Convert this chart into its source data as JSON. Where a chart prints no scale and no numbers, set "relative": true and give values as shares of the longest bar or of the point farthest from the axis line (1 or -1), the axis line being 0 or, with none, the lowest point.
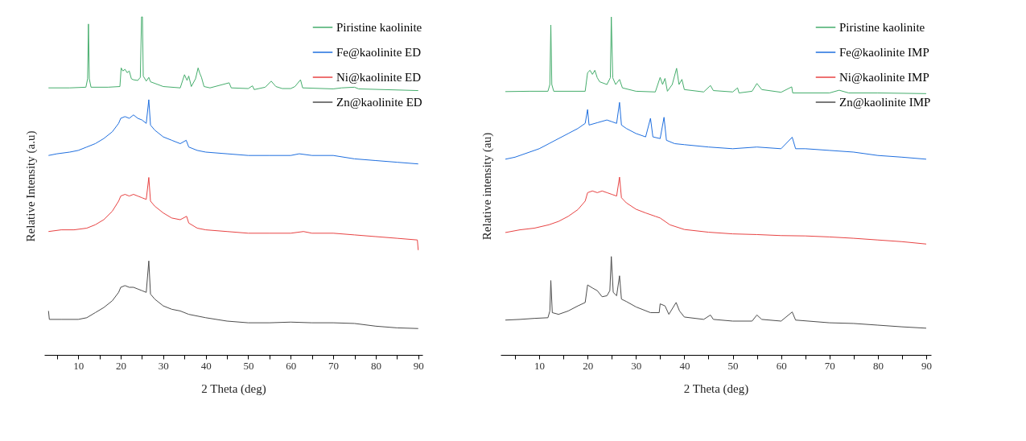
{
  "chart_data": [
    {
      "type": "line",
      "relative": true,
      "xlabel": "2 Theta (deg)",
      "ylabel": "Relative Intensity (a.u)",
      "legend": "top right",
      "xlim": [
        2,
        91
      ],
      "xticks": [
        {
          "value": 5,
          "label": null
        },
        10,
        {
          "value": 15,
          "label": null
        },
        20,
        {
          "value": 25,
          "label": null
        },
        30,
        {
          "value": 35,
          "label": null
        },
        40,
        {
          "value": 45,
          "label": null
        },
        50,
        {
          "value": 55,
          "label": null
        },
        60,
        {
          "value": 65,
          "label": null
        },
        70,
        {
          "value": 75,
          "label": null
        },
        80,
        {
          "value": 85,
          "label": null
        },
        90
      ],
      "series": [
        {
          "name": "Piristine kaolinite",
          "color": "#45ad6c",
          "x": [
            3,
            8,
            11.8,
            12.2,
            12.4,
            12.6,
            13,
            17,
            19.8,
            20.1,
            20.5,
            21,
            21.5,
            22,
            22.5,
            23,
            24,
            24.6,
            24.9,
            25.1,
            25.3,
            26,
            26.6,
            27,
            30,
            34,
            35,
            35.6,
            36,
            36.6,
            37.6,
            38.2,
            38.6,
            39,
            39.6,
            41,
            45.5,
            46,
            50,
            51,
            51.4,
            54,
            55.4,
            56.5,
            58,
            60,
            61,
            62.3,
            62.8,
            70,
            72,
            75,
            76,
            90
          ],
          "values": [
            0.79,
            0.79,
            0.792,
            0.817,
            0.979,
            0.817,
            0.792,
            0.792,
            0.794,
            0.849,
            0.84,
            0.845,
            0.835,
            0.84,
            0.817,
            0.814,
            0.812,
            0.821,
            1.0,
            1.0,
            0.825,
            0.81,
            0.821,
            0.808,
            0.794,
            0.79,
            0.829,
            0.812,
            0.825,
            0.794,
            0.817,
            0.849,
            0.833,
            0.821,
            0.794,
            0.79,
            0.805,
            0.79,
            0.788,
            0.796,
            0.785,
            0.792,
            0.81,
            0.794,
            0.788,
            0.788,
            0.794,
            0.814,
            0.79,
            0.787,
            0.79,
            0.792,
            0.787,
            0.782
          ]
        },
        {
          "name": "Fe@kaolinite ED",
          "color": "#1f6fdf",
          "x": [
            3,
            5,
            8,
            10,
            12,
            14,
            16,
            18,
            19.5,
            20,
            21,
            22,
            23,
            24,
            25,
            26,
            26.6,
            27,
            28,
            30,
            32,
            34,
            35.4,
            36,
            38,
            40,
            45,
            50,
            55,
            60,
            62,
            65,
            70,
            75,
            80,
            85,
            90
          ],
          "values": [
            0.59,
            0.595,
            0.6,
            0.605,
            0.615,
            0.625,
            0.64,
            0.66,
            0.685,
            0.7,
            0.705,
            0.7,
            0.71,
            0.7,
            0.695,
            0.685,
            0.755,
            0.68,
            0.665,
            0.645,
            0.635,
            0.625,
            0.635,
            0.615,
            0.605,
            0.6,
            0.595,
            0.59,
            0.59,
            0.59,
            0.595,
            0.59,
            0.59,
            0.58,
            0.575,
            0.57,
            0.565
          ]
        },
        {
          "name": "Ni@kaolinite ED",
          "color": "#e84343",
          "x": [
            3,
            6,
            9,
            12,
            14,
            16,
            18,
            19.5,
            20,
            21,
            22,
            23,
            24,
            25,
            26,
            26.6,
            27,
            28,
            30,
            32,
            34,
            35.5,
            36,
            38,
            40,
            45,
            50,
            55,
            60,
            63,
            65,
            70,
            75,
            80,
            85,
            89.8,
            90
          ],
          "values": [
            0.365,
            0.37,
            0.37,
            0.375,
            0.385,
            0.4,
            0.425,
            0.455,
            0.47,
            0.475,
            0.47,
            0.475,
            0.47,
            0.465,
            0.46,
            0.525,
            0.455,
            0.44,
            0.42,
            0.405,
            0.4,
            0.41,
            0.39,
            0.375,
            0.37,
            0.365,
            0.36,
            0.36,
            0.36,
            0.365,
            0.36,
            0.36,
            0.355,
            0.35,
            0.345,
            0.34,
            0.31
          ]
        },
        {
          "name": "Zn@kaolinite ED",
          "color": "#4d4d4d",
          "x": [
            3,
            3.2,
            6,
            10,
            12,
            14,
            16,
            18,
            19.5,
            20,
            21,
            22,
            23,
            24,
            25,
            26,
            26.6,
            27,
            28,
            30,
            32,
            34,
            36,
            40,
            45,
            50,
            55,
            60,
            65,
            70,
            75,
            80,
            85,
            90
          ],
          "values": [
            0.13,
            0.105,
            0.105,
            0.105,
            0.11,
            0.125,
            0.14,
            0.16,
            0.185,
            0.2,
            0.205,
            0.2,
            0.2,
            0.195,
            0.19,
            0.185,
            0.278,
            0.18,
            0.165,
            0.145,
            0.135,
            0.13,
            0.12,
            0.11,
            0.1,
            0.095,
            0.095,
            0.097,
            0.095,
            0.095,
            0.093,
            0.085,
            0.08,
            0.078
          ]
        }
      ]
    },
    {
      "type": "line",
      "relative": true,
      "xlabel": "2 Theta (deg)",
      "ylabel": "Relative intensity (au)",
      "legend": "top right",
      "xlim": [
        2,
        91
      ],
      "xticks": [
        {
          "value": 5,
          "label": null
        },
        10,
        {
          "value": 15,
          "label": null
        },
        20,
        {
          "value": 25,
          "label": null
        },
        30,
        {
          "value": 35,
          "label": null
        },
        40,
        {
          "value": 45,
          "label": null
        },
        50,
        {
          "value": 55,
          "label": null
        },
        60,
        {
          "value": 65,
          "label": null
        },
        70,
        {
          "value": 75,
          "label": null
        },
        80,
        {
          "value": 85,
          "label": null
        },
        90
      ],
      "series": [
        {
          "name": "Piristine kaolinite",
          "color": "#45ad6c",
          "x": [
            3,
            8,
            11.8,
            12.2,
            12.4,
            12.6,
            13,
            19.5,
            20,
            20.5,
            21,
            21.5,
            22,
            22.5,
            24,
            24.7,
            24.9,
            25.2,
            25.8,
            26.6,
            27.2,
            30,
            34,
            35,
            35.5,
            36,
            36.5,
            37.5,
            38.4,
            38.9,
            39.5,
            40,
            44,
            45.4,
            46,
            50,
            51,
            51.3,
            54,
            55,
            56,
            60,
            62.2,
            62.4,
            70,
            72,
            74,
            80,
            90
          ],
          "values": [
            0.779,
            0.78,
            0.78,
            0.8,
            0.976,
            0.8,
            0.78,
            0.78,
            0.835,
            0.842,
            0.83,
            0.842,
            0.82,
            0.808,
            0.8,
            0.82,
            1.0,
            0.82,
            0.8,
            0.815,
            0.79,
            0.78,
            0.778,
            0.821,
            0.8,
            0.818,
            0.78,
            0.8,
            0.848,
            0.8,
            0.815,
            0.785,
            0.778,
            0.797,
            0.782,
            0.778,
            0.79,
            0.775,
            0.78,
            0.803,
            0.785,
            0.777,
            0.793,
            0.775,
            0.775,
            0.783,
            0.775,
            0.775,
            0.773
          ]
        },
        {
          "name": "Fe@kaolinite IMP",
          "color": "#1f6fdf",
          "x": [
            3,
            5,
            8,
            10,
            12,
            14,
            16,
            18,
            19.5,
            20,
            20.3,
            22,
            24,
            25,
            26,
            26.6,
            27,
            28,
            30,
            32,
            33,
            33.5,
            35,
            35.8,
            36.3,
            38,
            40,
            45,
            50,
            55,
            60,
            62.3,
            63,
            65,
            70,
            75,
            80,
            85,
            90
          ],
          "values": [
            0.579,
            0.585,
            0.6,
            0.61,
            0.625,
            0.64,
            0.655,
            0.67,
            0.685,
            0.726,
            0.68,
            0.687,
            0.695,
            0.69,
            0.685,
            0.747,
            0.68,
            0.67,
            0.655,
            0.645,
            0.7,
            0.645,
            0.64,
            0.703,
            0.635,
            0.625,
            0.622,
            0.615,
            0.61,
            0.615,
            0.61,
            0.644,
            0.61,
            0.61,
            0.605,
            0.6,
            0.59,
            0.585,
            0.579
          ]
        },
        {
          "name": "Ni@kaolinite IMP",
          "color": "#e84343",
          "x": [
            3,
            6,
            9,
            12,
            14,
            16,
            18,
            19.5,
            20,
            21,
            22,
            23,
            24,
            25,
            26,
            26.6,
            27,
            28,
            30,
            32,
            34,
            35,
            37,
            40,
            45,
            50,
            55,
            60,
            65,
            70,
            75,
            80,
            85,
            90
          ],
          "values": [
            0.362,
            0.37,
            0.375,
            0.385,
            0.395,
            0.41,
            0.43,
            0.455,
            0.48,
            0.485,
            0.48,
            0.485,
            0.48,
            0.475,
            0.47,
            0.526,
            0.465,
            0.45,
            0.431,
            0.42,
            0.41,
            0.405,
            0.385,
            0.371,
            0.363,
            0.358,
            0.356,
            0.353,
            0.352,
            0.349,
            0.345,
            0.34,
            0.335,
            0.328
          ]
        },
        {
          "name": "Zn@kaolinite IMP",
          "color": "#4d4d4d",
          "x": [
            3,
            6,
            9,
            11.8,
            12.2,
            12.4,
            12.7,
            14,
            16,
            18,
            19.5,
            20,
            21,
            22,
            23,
            24,
            24.6,
            24.9,
            25.3,
            26,
            26.6,
            27,
            28,
            30,
            33,
            34.8,
            35,
            36,
            36.8,
            38.3,
            39,
            40,
            44,
            45.4,
            46,
            50,
            54,
            55,
            56,
            60,
            62.3,
            63,
            70,
            75,
            80,
            85,
            90
          ],
          "values": [
            0.103,
            0.105,
            0.108,
            0.11,
            0.13,
            0.22,
            0.125,
            0.12,
            0.13,
            0.145,
            0.155,
            0.207,
            0.198,
            0.19,
            0.172,
            0.175,
            0.19,
            0.291,
            0.185,
            0.175,
            0.234,
            0.165,
            0.158,
            0.142,
            0.125,
            0.125,
            0.151,
            0.145,
            0.12,
            0.155,
            0.13,
            0.112,
            0.105,
            0.118,
            0.105,
            0.1,
            0.1,
            0.118,
            0.105,
            0.1,
            0.127,
            0.103,
            0.095,
            0.093,
            0.088,
            0.083,
            0.079
          ]
        }
      ]
    }
  ]
}
